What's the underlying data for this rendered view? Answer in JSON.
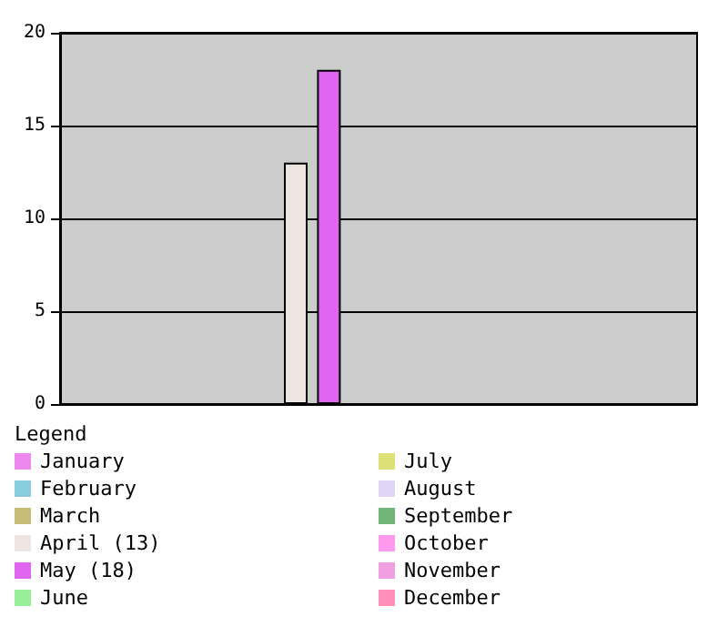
{
  "chart_data": {
    "type": "bar",
    "legend_title": "Legend",
    "categories": [
      null
    ],
    "series": [
      {
        "name": "January",
        "color": "#ee88ee",
        "values": [
          0
        ]
      },
      {
        "name": "February",
        "color": "#88ccdd",
        "values": [
          0
        ]
      },
      {
        "name": "March",
        "color": "#c8bb77",
        "values": [
          0
        ]
      },
      {
        "name": "April (13)",
        "color": "#eee4e2",
        "values": [
          13
        ]
      },
      {
        "name": "May (18)",
        "color": "#e066f0",
        "values": [
          18
        ]
      },
      {
        "name": "June",
        "color": "#99ee99",
        "values": [
          0
        ]
      },
      {
        "name": "July",
        "color": "#dde077",
        "values": [
          0
        ]
      },
      {
        "name": "August",
        "color": "#e2d4f4",
        "values": [
          0
        ]
      },
      {
        "name": "September",
        "color": "#6fb577",
        "values": [
          0
        ]
      },
      {
        "name": "October",
        "color": "#ff99ee",
        "values": [
          0
        ]
      },
      {
        "name": "November",
        "color": "#f0a0e0",
        "values": [
          0
        ]
      },
      {
        "name": "December",
        "color": "#ff90b8",
        "values": [
          0
        ]
      }
    ],
    "ylim": [
      0,
      20
    ],
    "yticks": [
      0,
      5,
      10,
      15,
      20
    ],
    "grid": "y",
    "legend": "bottom"
  }
}
